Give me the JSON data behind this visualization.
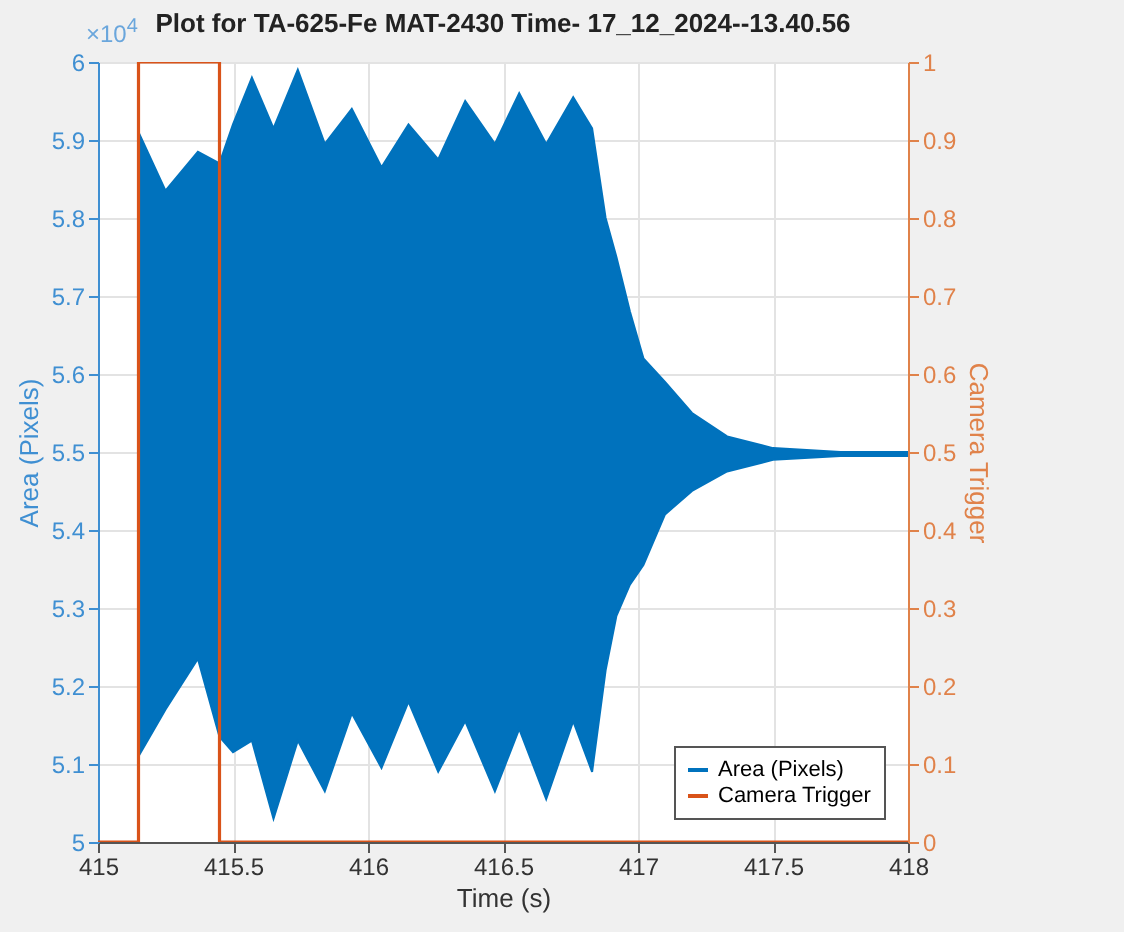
{
  "chart_data": {
    "type": "line",
    "title": "Plot for TA-625-Fe MAT-2430 Time- 17_12_2024--13.40.56",
    "xlabel": "Time (s)",
    "ylabel": "Area (Pixels)",
    "y2label": "Camera Trigger",
    "annotations": [
      "×10$^{4}$"
    ],
    "xlim": [
      415,
      418
    ],
    "xticks": [
      415,
      415.5,
      416,
      416.5,
      417,
      417.5,
      418
    ],
    "ylim": [
      5,
      6
    ],
    "yticks": [
      5,
      5.1,
      5.2,
      5.3,
      5.4,
      5.5,
      5.6,
      5.7,
      5.8,
      5.9,
      6
    ],
    "y2lim": [
      0,
      1
    ],
    "y2ticks": [
      0,
      0.1,
      0.2,
      0.3,
      0.4,
      0.5,
      0.6,
      0.7,
      0.8,
      0.9,
      1
    ],
    "grid": true,
    "legend": "bottom right",
    "series": [
      {
        "name": "Area (Pixels)",
        "color": "#0072bd",
        "x": [
          415.15,
          415.25,
          415.37,
          415.45,
          415.5,
          415.57,
          415.65,
          415.74,
          415.84,
          415.94,
          416.05,
          416.15,
          416.26,
          416.36,
          416.47,
          416.56,
          416.66,
          416.76,
          416.83,
          416.88,
          416.92,
          416.97,
          417.02,
          417.1,
          417.2,
          417.33,
          417.5,
          417.75,
          418
        ],
        "values": [
          null,
          null,
          null,
          null,
          null,
          null,
          null,
          null,
          null,
          null,
          null,
          null,
          null,
          null,
          null,
          null,
          null,
          null,
          null,
          null,
          null,
          null,
          null,
          null,
          null,
          null,
          null,
          null,
          null
        ],
        "upper": [
          5.91,
          5.835,
          5.885,
          5.87,
          5.92,
          5.98,
          5.915,
          5.99,
          5.895,
          5.94,
          5.865,
          5.92,
          5.875,
          5.95,
          5.895,
          5.96,
          5.895,
          5.955,
          5.915,
          5.8,
          5.75,
          5.68,
          5.62,
          5.59,
          5.55,
          5.52,
          5.505,
          5.5,
          5.5
        ],
        "lower": [
          5.11,
          5.17,
          5.235,
          5.135,
          5.115,
          5.13,
          5.03,
          5.13,
          5.065,
          5.165,
          5.095,
          5.18,
          5.09,
          5.155,
          5.065,
          5.145,
          5.055,
          5.155,
          5.09,
          5.22,
          5.29,
          5.33,
          5.355,
          5.42,
          5.45,
          5.475,
          5.49,
          5.495,
          5.495
        ]
      },
      {
        "name": "Camera Trigger",
        "color": "#d95319",
        "axis": "y2",
        "x": [
          415,
          415.15,
          415.15,
          415.45,
          415.45,
          418
        ],
        "values": [
          0,
          0,
          1,
          1,
          0,
          0
        ]
      }
    ]
  }
}
